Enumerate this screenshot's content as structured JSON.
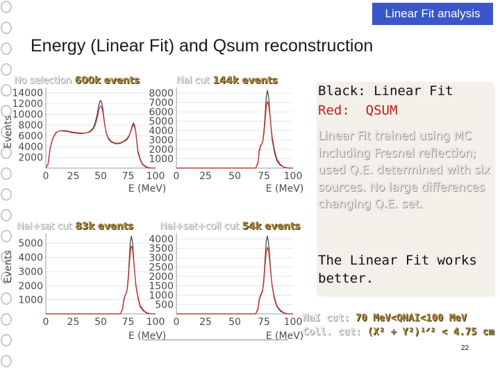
{
  "header": {
    "badge": "Linear Fit analysis",
    "title": "Energy (Linear Fit) and Qsum reconstruction"
  },
  "panels": [
    {
      "selection": "No selection",
      "events": "600k events"
    },
    {
      "selection": "NaI cut",
      "events": "144k events"
    },
    {
      "selection": "NaI+sat cut",
      "events": "83k events"
    },
    {
      "selection": "NaI+sat+coll cut",
      "events": "54k events"
    }
  ],
  "chart_data": [
    {
      "type": "line",
      "ylabel": "Events",
      "xlabel": "E (MeV)",
      "xlim": [
        0,
        100
      ],
      "ylim": [
        0,
        15000
      ],
      "x_ticks": [
        "0",
        "25",
        "50",
        "75",
        "100"
      ],
      "y_ticks": [
        "2000",
        "4000",
        "6000",
        "8000",
        "10000",
        "12000",
        "14000"
      ],
      "series": [
        {
          "color": "#3c3c3c",
          "x": [
            0,
            2,
            4,
            6,
            9,
            12,
            16,
            20,
            24,
            28,
            32,
            36,
            40,
            43,
            45,
            47,
            48,
            49,
            50,
            51,
            52,
            53,
            54,
            55,
            57,
            60,
            64,
            68,
            71,
            74,
            76,
            78,
            79,
            80,
            81,
            82,
            83,
            84,
            86,
            88,
            91,
            94,
            97,
            100
          ],
          "y": [
            0,
            800,
            3800,
            5400,
            6600,
            6900,
            6900,
            6800,
            6600,
            6500,
            6400,
            6500,
            6800,
            7400,
            8400,
            10200,
            11400,
            12300,
            12600,
            12100,
            11000,
            9300,
            7700,
            6500,
            5400,
            4800,
            4500,
            4600,
            4900,
            5300,
            6000,
            7300,
            8100,
            8400,
            7900,
            6700,
            4700,
            2900,
            1500,
            700,
            200,
            0,
            0,
            0
          ]
        },
        {
          "color": "#cc3333",
          "x": [
            0,
            2,
            4,
            6,
            9,
            12,
            16,
            20,
            24,
            28,
            32,
            36,
            40,
            43,
            45,
            47,
            48,
            49,
            50,
            51,
            52,
            53,
            54,
            55,
            57,
            60,
            64,
            68,
            71,
            74,
            76,
            78,
            79,
            80,
            81,
            82,
            83,
            84,
            86,
            88,
            91,
            94,
            97,
            100
          ],
          "y": [
            0,
            700,
            3600,
            5300,
            6500,
            6900,
            7000,
            6900,
            6700,
            6600,
            6500,
            6500,
            6700,
            7200,
            8000,
            9500,
            10500,
            11300,
            11600,
            11200,
            10400,
            9000,
            7700,
            6600,
            5600,
            4900,
            4600,
            4700,
            5000,
            5500,
            6100,
            7100,
            7800,
            8000,
            7600,
            6600,
            4900,
            3200,
            1700,
            800,
            300,
            50,
            0,
            0
          ]
        }
      ]
    },
    {
      "type": "line",
      "ylabel": "",
      "xlabel": "E (MeV)",
      "xlim": [
        0,
        100
      ],
      "ylim": [
        0,
        8600
      ],
      "x_ticks": [
        "0",
        "25",
        "50",
        "75",
        "100"
      ],
      "y_ticks": [
        "1000",
        "2000",
        "3000",
        "4000",
        "5000",
        "6000",
        "7000",
        "8000"
      ],
      "series": [
        {
          "color": "#3c3c3c",
          "x": [
            0,
            5,
            10,
            15,
            20,
            25,
            30,
            35,
            40,
            44,
            47,
            50,
            53,
            56,
            60,
            64,
            68,
            70,
            71,
            72,
            73,
            74,
            75,
            76,
            77,
            78,
            79,
            80,
            81,
            82,
            84,
            86,
            89,
            92,
            96,
            100
          ],
          "y": [
            0,
            0,
            0,
            0,
            0,
            0,
            0,
            0,
            0,
            0,
            0,
            0,
            0,
            0,
            0,
            0,
            0,
            600,
            1900,
            2400,
            2500,
            2900,
            3900,
            5600,
            7600,
            8300,
            7700,
            6100,
            4500,
            3100,
            1700,
            800,
            300,
            100,
            0,
            0
          ]
        },
        {
          "color": "#cc3333",
          "x": [
            0,
            5,
            10,
            15,
            20,
            25,
            30,
            35,
            40,
            44,
            47,
            50,
            53,
            56,
            60,
            64,
            68,
            70,
            71,
            72,
            73,
            74,
            75,
            76,
            77,
            78,
            79,
            80,
            81,
            82,
            84,
            86,
            89,
            92,
            96,
            100
          ],
          "y": [
            0,
            0,
            0,
            0,
            0,
            0,
            0,
            0,
            0,
            0,
            0,
            0,
            0,
            0,
            0,
            0,
            0,
            500,
            1700,
            2300,
            2500,
            2800,
            3600,
            5000,
            6500,
            7100,
            6800,
            5800,
            4600,
            3400,
            2000,
            1000,
            400,
            100,
            0,
            0
          ]
        }
      ]
    },
    {
      "type": "line",
      "ylabel": "Events",
      "xlabel": "E (MeV)",
      "xlim": [
        0,
        100
      ],
      "ylim": [
        0,
        5700
      ],
      "x_ticks": [
        "0",
        "25",
        "50",
        "75",
        "100"
      ],
      "y_ticks": [
        "1000",
        "2000",
        "3000",
        "4000",
        "5000"
      ],
      "series": [
        {
          "color": "#3c3c3c",
          "x": [
            0,
            5,
            10,
            15,
            20,
            25,
            30,
            35,
            40,
            44,
            47,
            50,
            53,
            56,
            60,
            64,
            68,
            70,
            71,
            72,
            73,
            74,
            75,
            76,
            77,
            78,
            79,
            80,
            81,
            82,
            84,
            86,
            89,
            92,
            96,
            100
          ],
          "y": [
            0,
            0,
            0,
            0,
            0,
            0,
            0,
            0,
            0,
            0,
            0,
            0,
            0,
            0,
            0,
            0,
            0,
            400,
            1000,
            1300,
            1400,
            1700,
            2500,
            3800,
            5100,
            5500,
            5100,
            4000,
            2900,
            2000,
            1100,
            500,
            200,
            50,
            0,
            0
          ]
        },
        {
          "color": "#cc3333",
          "x": [
            0,
            5,
            10,
            15,
            20,
            25,
            30,
            35,
            40,
            44,
            47,
            50,
            53,
            56,
            60,
            64,
            68,
            70,
            71,
            72,
            73,
            74,
            75,
            76,
            77,
            78,
            79,
            80,
            81,
            82,
            84,
            86,
            89,
            92,
            96,
            100
          ],
          "y": [
            0,
            0,
            0,
            0,
            0,
            0,
            0,
            0,
            0,
            0,
            0,
            0,
            0,
            0,
            0,
            0,
            0,
            350,
            900,
            1250,
            1400,
            1650,
            2300,
            3400,
            4400,
            4800,
            4600,
            3800,
            2900,
            2100,
            1200,
            600,
            250,
            80,
            0,
            0
          ]
        }
      ]
    },
    {
      "type": "line",
      "ylabel": "",
      "xlabel": "E (MeV)",
      "xlim": [
        0,
        100
      ],
      "ylim": [
        0,
        4300
      ],
      "x_ticks": [
        "0",
        "25",
        "50",
        "75",
        "100"
      ],
      "y_ticks": [
        "500",
        "1000",
        "1500",
        "2000",
        "2500",
        "3000",
        "3500",
        "4000"
      ],
      "series": [
        {
          "color": "#3c3c3c",
          "x": [
            0,
            5,
            10,
            15,
            20,
            25,
            30,
            35,
            40,
            44,
            47,
            50,
            53,
            56,
            60,
            64,
            68,
            70,
            71,
            72,
            73,
            74,
            75,
            76,
            77,
            78,
            79,
            80,
            81,
            82,
            84,
            86,
            89,
            92,
            96,
            100
          ],
          "y": [
            0,
            0,
            0,
            0,
            0,
            0,
            0,
            0,
            0,
            0,
            0,
            0,
            0,
            0,
            0,
            0,
            0,
            300,
            800,
            1000,
            1100,
            1300,
            1900,
            2900,
            3900,
            4150,
            3800,
            3000,
            2200,
            1500,
            800,
            400,
            150,
            40,
            0,
            0
          ]
        },
        {
          "color": "#cc3333",
          "x": [
            0,
            5,
            10,
            15,
            20,
            25,
            30,
            35,
            40,
            44,
            47,
            50,
            53,
            56,
            60,
            64,
            68,
            70,
            71,
            72,
            73,
            74,
            75,
            76,
            77,
            78,
            79,
            80,
            81,
            82,
            84,
            86,
            89,
            92,
            96,
            100
          ],
          "y": [
            0,
            0,
            0,
            0,
            0,
            0,
            0,
            0,
            0,
            0,
            0,
            0,
            0,
            0,
            0,
            0,
            0,
            250,
            700,
            950,
            1050,
            1250,
            1750,
            2600,
            3300,
            3550,
            3400,
            2800,
            2150,
            1550,
            900,
            450,
            200,
            60,
            0,
            0
          ]
        }
      ]
    }
  ],
  "notes": {
    "black_line": "Black: Linear Fit",
    "red_line": "Red:  QSUM",
    "body": "Linear Fit trained using MC including Fresnel reflection; used Q.E. determined with six sources. No large differences changing Q.E. set.",
    "conclusion": "The Linear Fit works better."
  },
  "cuts": {
    "nai_key": "NaI cut:",
    "nai_val": "70 MeV<QNAI<100 MeV",
    "coll_key": "Coll. cut:",
    "coll_val": "(X² + Y²)¹ᐟ² < 4.75 cm"
  },
  "page_number": "22"
}
